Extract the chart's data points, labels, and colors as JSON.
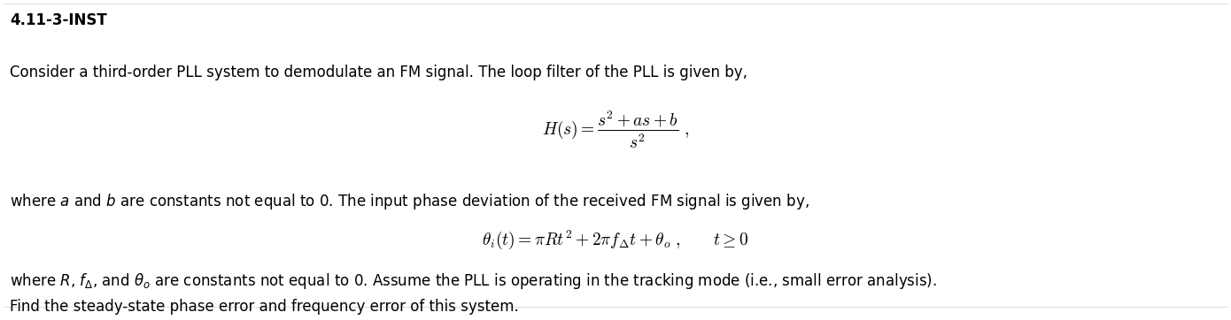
{
  "title": "4.11-3-INST",
  "bg_color": "#ffffff",
  "text_color": "#000000",
  "fig_width": 13.9,
  "fig_height": 3.62,
  "dpi": 100
}
